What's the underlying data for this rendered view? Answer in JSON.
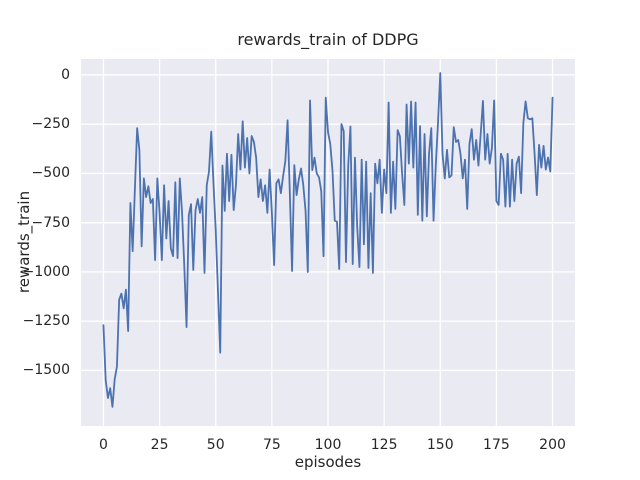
{
  "figure": {
    "background": "#ffffff"
  },
  "chart_data": {
    "type": "line",
    "title": "rewards_train of DDPG",
    "xlabel": "episodes",
    "ylabel": "rewards_train",
    "x_ticks": [
      0,
      25,
      50,
      75,
      100,
      125,
      150,
      175,
      200
    ],
    "x_tick_labels": [
      "0",
      "25",
      "50",
      "75",
      "100",
      "125",
      "150",
      "175",
      "200"
    ],
    "y_ticks": [
      0,
      -250,
      -500,
      -750,
      -1000,
      -1250,
      -1500
    ],
    "y_tick_labels": [
      "0",
      "−250",
      "−500",
      "−750",
      "−1000",
      "−1250",
      "−1500"
    ],
    "xlim": [
      -10,
      210
    ],
    "ylim": [
      -1782,
      81
    ],
    "grid": true,
    "legend": null,
    "style": {
      "axes_background": "#eaeaf2",
      "grid_color": "#ffffff",
      "line_color": "#4c72b0",
      "text_color": "#262626",
      "line_width": 1.8
    },
    "series": [
      {
        "name": "rewards_train",
        "x_description": "episode index 0..200, one point per episode",
        "values": [
          -1270,
          -1550,
          -1640,
          -1590,
          -1685,
          -1545,
          -1480,
          -1140,
          -1110,
          -1185,
          -1090,
          -1300,
          -650,
          -895,
          -580,
          -270,
          -380,
          -870,
          -525,
          -620,
          -565,
          -650,
          -630,
          -940,
          -525,
          -700,
          -940,
          -560,
          -830,
          -640,
          -880,
          -920,
          -545,
          -930,
          -525,
          -700,
          -970,
          -1280,
          -712,
          -656,
          -990,
          -686,
          -630,
          -700,
          -620,
          -1005,
          -560,
          -490,
          -288,
          -550,
          -790,
          -1100,
          -1410,
          -460,
          -690,
          -400,
          -640,
          -405,
          -686,
          -560,
          -300,
          -480,
          -235,
          -470,
          -320,
          -500,
          -310,
          -340,
          -420,
          -620,
          -530,
          -640,
          -560,
          -700,
          -480,
          -700,
          -965,
          -550,
          -530,
          -600,
          -515,
          -437,
          -230,
          -600,
          -995,
          -458,
          -610,
          -530,
          -475,
          -560,
          -690,
          -1000,
          -130,
          -483,
          -420,
          -500,
          -520,
          -590,
          -920,
          -115,
          -290,
          -350,
          -485,
          -740,
          -745,
          -985,
          -250,
          -285,
          -950,
          -460,
          -262,
          -960,
          -420,
          -770,
          -975,
          -430,
          -860,
          -440,
          -980,
          -600,
          -1005,
          -450,
          -550,
          -430,
          -700,
          -480,
          -600,
          -140,
          -700,
          -440,
          -680,
          -280,
          -310,
          -500,
          -660,
          -150,
          -450,
          -135,
          -470,
          -140,
          -710,
          -260,
          -740,
          -300,
          -718,
          -400,
          -270,
          -740,
          -460,
          -240,
          10,
          -400,
          -525,
          -380,
          -520,
          -510,
          -265,
          -340,
          -330,
          -400,
          -525,
          -430,
          -680,
          -350,
          -275,
          -430,
          -330,
          -460,
          -300,
          -132,
          -430,
          -300,
          -450,
          -370,
          -130,
          -640,
          -660,
          -400,
          -430,
          -668,
          -400,
          -668,
          -430,
          -640,
          -450,
          -415,
          -600,
          -245,
          -134,
          -220,
          -225,
          -220,
          -400,
          -610,
          -355,
          -470,
          -360,
          -480,
          -420,
          -490,
          -115
        ]
      }
    ]
  }
}
